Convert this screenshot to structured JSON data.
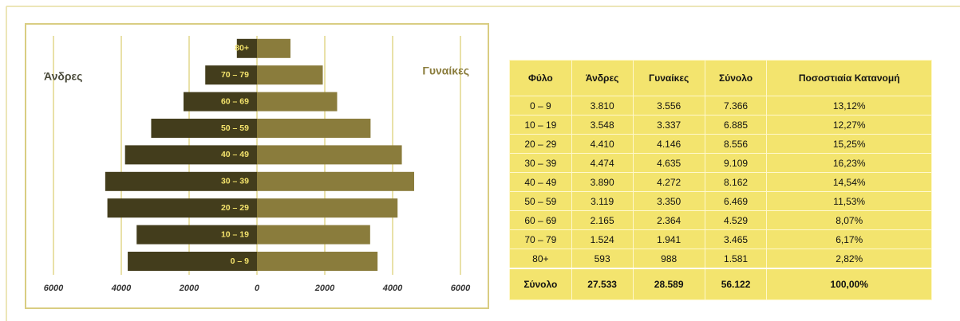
{
  "chart_data": {
    "type": "pyramid",
    "categories": [
      "0 – 9",
      "10 – 19",
      "20 – 29",
      "30 – 39",
      "40 – 49",
      "50 – 59",
      "60 – 69",
      "70 – 79",
      "80+"
    ],
    "series": [
      {
        "name": "Άνδρες",
        "color": "#433d1c",
        "side": "left",
        "values": [
          3810,
          3548,
          4410,
          4474,
          3890,
          3119,
          2165,
          1524,
          593
        ]
      },
      {
        "name": "Γυναίκες",
        "color": "#8a7c3c",
        "side": "right",
        "values": [
          3556,
          3337,
          4146,
          4635,
          4272,
          3350,
          2364,
          1941,
          988
        ]
      }
    ],
    "xlim": [
      -6000,
      6000
    ],
    "xticks": [
      {
        "value": -6000,
        "label": "6000"
      },
      {
        "value": -4000,
        "label": "4000"
      },
      {
        "value": -2000,
        "label": "2000"
      },
      0,
      2000,
      4000,
      6000
    ],
    "grid": true
  },
  "table": {
    "header": [
      "Φύλο",
      "Άνδρες",
      "Γυναίκες",
      "Σύνολο",
      "Ποσοστιαία Κατανομή"
    ],
    "rows": [
      [
        "0 – 9",
        "3.810",
        "3.556",
        "7.366",
        "13,12%"
      ],
      [
        "10 – 19",
        "3.548",
        "3.337",
        "6.885",
        "12,27%"
      ],
      [
        "20 – 29",
        "4.410",
        "4.146",
        "8.556",
        "15,25%"
      ],
      [
        "30 – 39",
        "4.474",
        "4.635",
        "9.109",
        "16,23%"
      ],
      [
        "40 – 49",
        "3.890",
        "4.272",
        "8.162",
        "14,54%"
      ],
      [
        "50 – 59",
        "3.119",
        "3.350",
        "6.469",
        "11,53%"
      ],
      [
        "60 – 69",
        "2.165",
        "2.364",
        "4.529",
        "8,07%"
      ],
      [
        "70 – 79",
        "1.524",
        "1.941",
        "3.465",
        "6,17%"
      ],
      [
        "80+",
        "593",
        "988",
        "1.581",
        "2,82%"
      ]
    ],
    "total": [
      "Σύνολο",
      "27.533",
      "28.589",
      "56.122",
      "100,00%"
    ]
  }
}
